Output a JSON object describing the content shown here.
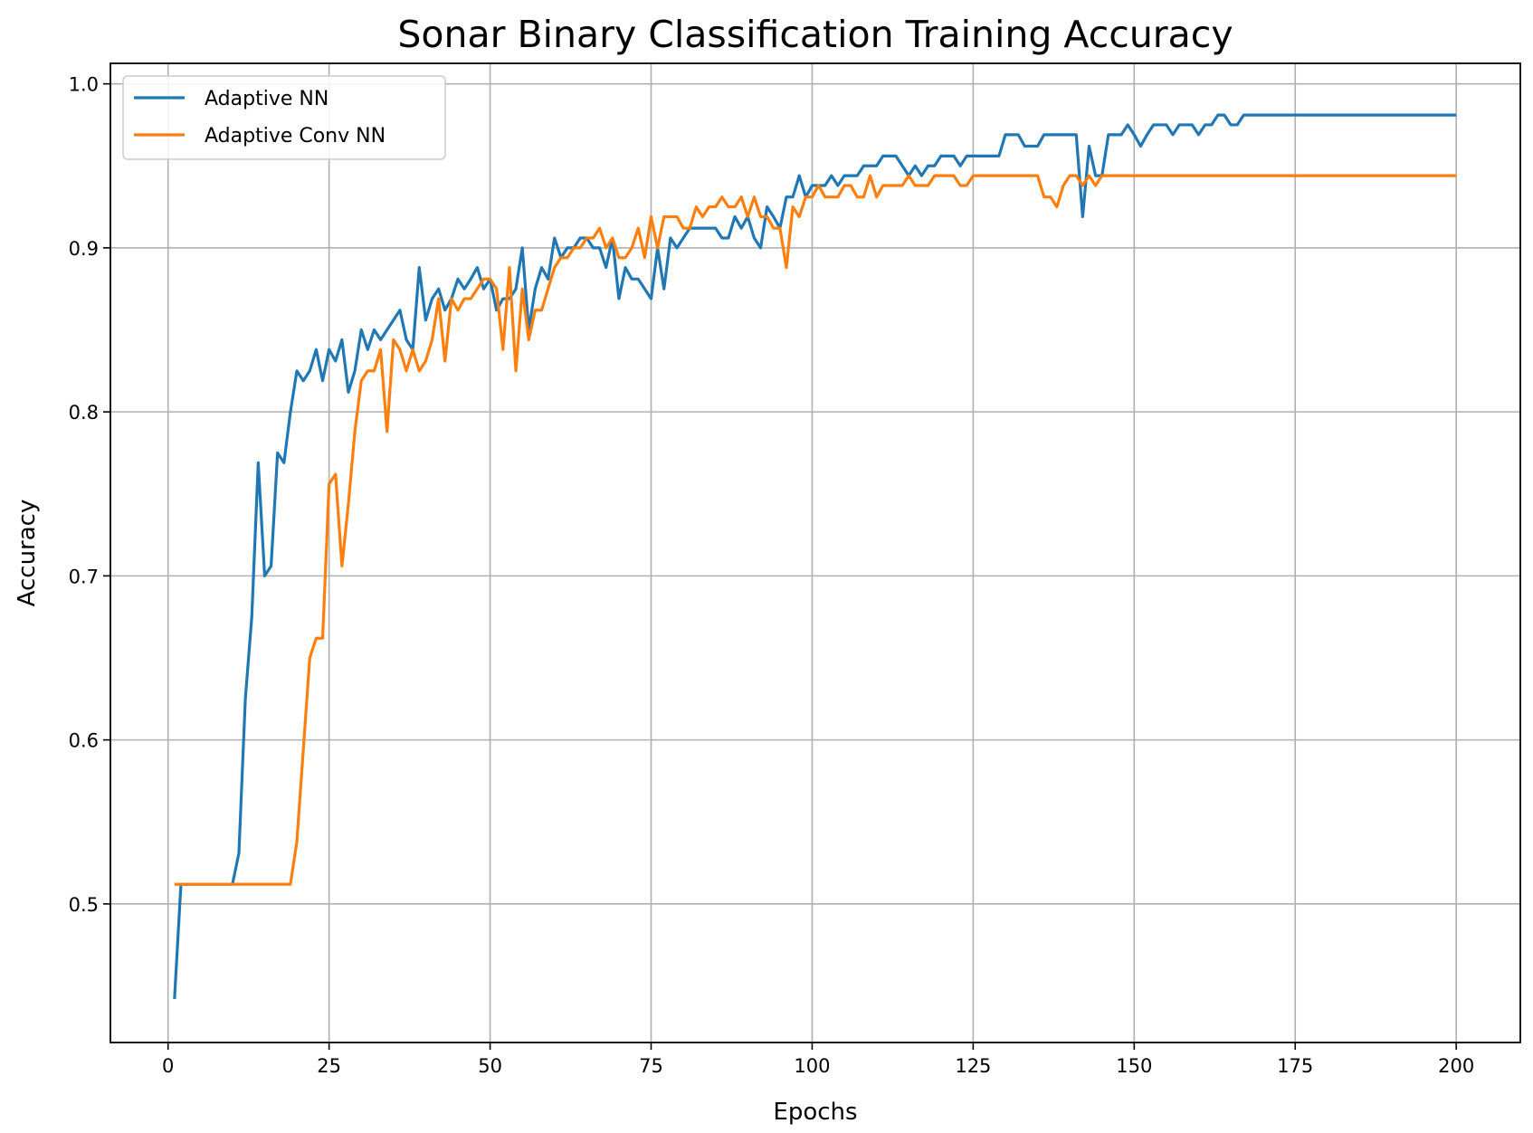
{
  "chart_data": {
    "type": "line",
    "title": "Sonar Binary Classification Training Accuracy",
    "xlabel": "Epochs",
    "ylabel": "Accuracy",
    "xlim": [
      -8.95,
      209.95
    ],
    "ylim": [
      0.4155,
      1.0125
    ],
    "xticks": [
      0,
      25,
      50,
      75,
      100,
      125,
      150,
      175,
      200
    ],
    "yticks": [
      0.5,
      0.6,
      0.7,
      0.8,
      0.9,
      1.0
    ],
    "xtick_labels": [
      "0",
      "25",
      "50",
      "75",
      "100",
      "125",
      "150",
      "175",
      "200"
    ],
    "ytick_labels": [
      "0.5",
      "0.6",
      "0.7",
      "0.8",
      "0.9",
      "1.0"
    ],
    "grid": true,
    "legend_position": "upper-left",
    "series": [
      {
        "name": "Adaptive NN",
        "color": "#1f77b4",
        "x": [
          1,
          2,
          3,
          4,
          5,
          6,
          7,
          8,
          9,
          10,
          11,
          12,
          13,
          14,
          15,
          16,
          17,
          18,
          19,
          20,
          21,
          22,
          23,
          24,
          25,
          26,
          27,
          28,
          29,
          30,
          31,
          32,
          33,
          34,
          35,
          36,
          37,
          38,
          39,
          40,
          41,
          42,
          43,
          44,
          45,
          46,
          47,
          48,
          49,
          50,
          51,
          52,
          53,
          54,
          55,
          56,
          57,
          58,
          59,
          60,
          61,
          62,
          63,
          64,
          65,
          66,
          67,
          68,
          69,
          70,
          71,
          72,
          73,
          74,
          75,
          76,
          77,
          78,
          79,
          80,
          81,
          82,
          83,
          84,
          85,
          86,
          87,
          88,
          89,
          90,
          91,
          92,
          93,
          94,
          95,
          96,
          97,
          98,
          99,
          100,
          101,
          102,
          103,
          104,
          105,
          106,
          107,
          108,
          109,
          110,
          111,
          112,
          113,
          114,
          115,
          116,
          117,
          118,
          119,
          120,
          121,
          122,
          123,
          124,
          125,
          126,
          127,
          128,
          129,
          130,
          131,
          132,
          133,
          134,
          135,
          136,
          137,
          138,
          139,
          140,
          141,
          142,
          143,
          144,
          145,
          146,
          147,
          148,
          149,
          150,
          151,
          152,
          153,
          154,
          155,
          156,
          157,
          158,
          159,
          160,
          161,
          162,
          163,
          164,
          165,
          166,
          167,
          200
        ],
        "y": [
          0.442,
          0.512,
          0.512,
          0.512,
          0.512,
          0.512,
          0.512,
          0.512,
          0.512,
          0.512,
          0.531,
          0.625,
          0.675,
          0.769,
          0.7,
          0.706,
          0.775,
          0.769,
          0.8,
          0.825,
          0.819,
          0.825,
          0.838,
          0.819,
          0.838,
          0.831,
          0.844,
          0.812,
          0.825,
          0.85,
          0.838,
          0.85,
          0.844,
          0.85,
          0.856,
          0.862,
          0.844,
          0.838,
          0.888,
          0.856,
          0.869,
          0.875,
          0.862,
          0.869,
          0.881,
          0.875,
          0.881,
          0.888,
          0.875,
          0.881,
          0.862,
          0.869,
          0.869,
          0.875,
          0.9,
          0.85,
          0.875,
          0.888,
          0.881,
          0.906,
          0.894,
          0.9,
          0.9,
          0.906,
          0.906,
          0.9,
          0.9,
          0.888,
          0.906,
          0.869,
          0.888,
          0.881,
          0.881,
          0.875,
          0.869,
          0.9,
          0.875,
          0.906,
          0.9,
          0.906,
          0.912,
          0.912,
          0.912,
          0.912,
          0.912,
          0.906,
          0.906,
          0.919,
          0.912,
          0.919,
          0.906,
          0.9,
          0.925,
          0.919,
          0.912,
          0.931,
          0.931,
          0.944,
          0.931,
          0.938,
          0.938,
          0.938,
          0.944,
          0.938,
          0.944,
          0.944,
          0.944,
          0.95,
          0.95,
          0.95,
          0.956,
          0.956,
          0.956,
          0.95,
          0.944,
          0.95,
          0.944,
          0.95,
          0.95,
          0.956,
          0.956,
          0.956,
          0.95,
          0.956,
          0.956,
          0.956,
          0.956,
          0.956,
          0.956,
          0.969,
          0.969,
          0.969,
          0.962,
          0.962,
          0.962,
          0.969,
          0.969,
          0.969,
          0.969,
          0.969,
          0.969,
          0.919,
          0.962,
          0.944,
          0.944,
          0.969,
          0.969,
          0.969,
          0.975,
          0.969,
          0.962,
          0.969,
          0.975,
          0.975,
          0.975,
          0.969,
          0.975,
          0.975,
          0.975,
          0.969,
          0.975,
          0.975,
          0.981,
          0.981,
          0.975,
          0.975,
          0.981,
          0.981
        ]
      },
      {
        "name": "Adaptive Conv NN",
        "color": "#ff7f0e",
        "x": [
          1,
          2,
          3,
          4,
          5,
          6,
          7,
          8,
          9,
          10,
          11,
          12,
          13,
          14,
          15,
          16,
          17,
          18,
          19,
          20,
          21,
          22,
          23,
          24,
          25,
          26,
          27,
          28,
          29,
          30,
          31,
          32,
          33,
          34,
          35,
          36,
          37,
          38,
          39,
          40,
          41,
          42,
          43,
          44,
          45,
          46,
          47,
          48,
          49,
          50,
          51,
          52,
          53,
          54,
          55,
          56,
          57,
          58,
          59,
          60,
          61,
          62,
          63,
          64,
          65,
          66,
          67,
          68,
          69,
          70,
          71,
          72,
          73,
          74,
          75,
          76,
          77,
          78,
          79,
          80,
          81,
          82,
          83,
          84,
          85,
          86,
          87,
          88,
          89,
          90,
          91,
          92,
          93,
          94,
          95,
          96,
          97,
          98,
          99,
          100,
          101,
          102,
          103,
          104,
          105,
          106,
          107,
          108,
          109,
          110,
          111,
          112,
          113,
          114,
          115,
          116,
          117,
          118,
          119,
          120,
          121,
          122,
          123,
          124,
          125,
          126,
          127,
          128,
          129,
          130,
          131,
          132,
          133,
          134,
          135,
          136,
          137,
          138,
          139,
          140,
          141,
          142,
          143,
          144,
          145,
          146,
          147,
          148,
          149,
          150,
          200
        ],
        "y": [
          0.512,
          0.512,
          0.512,
          0.512,
          0.512,
          0.512,
          0.512,
          0.512,
          0.512,
          0.512,
          0.512,
          0.512,
          0.512,
          0.512,
          0.512,
          0.512,
          0.512,
          0.512,
          0.512,
          0.538,
          0.594,
          0.65,
          0.662,
          0.662,
          0.756,
          0.762,
          0.706,
          0.744,
          0.788,
          0.819,
          0.825,
          0.825,
          0.838,
          0.788,
          0.844,
          0.838,
          0.825,
          0.838,
          0.825,
          0.831,
          0.844,
          0.869,
          0.831,
          0.869,
          0.862,
          0.869,
          0.869,
          0.875,
          0.881,
          0.881,
          0.875,
          0.838,
          0.888,
          0.825,
          0.875,
          0.844,
          0.862,
          0.862,
          0.875,
          0.888,
          0.894,
          0.894,
          0.9,
          0.9,
          0.906,
          0.906,
          0.912,
          0.9,
          0.906,
          0.894,
          0.894,
          0.9,
          0.912,
          0.894,
          0.919,
          0.9,
          0.919,
          0.919,
          0.919,
          0.912,
          0.912,
          0.925,
          0.919,
          0.925,
          0.925,
          0.931,
          0.925,
          0.925,
          0.931,
          0.919,
          0.931,
          0.919,
          0.919,
          0.912,
          0.912,
          0.888,
          0.925,
          0.919,
          0.931,
          0.931,
          0.938,
          0.931,
          0.931,
          0.931,
          0.938,
          0.938,
          0.931,
          0.931,
          0.944,
          0.931,
          0.938,
          0.938,
          0.938,
          0.938,
          0.944,
          0.938,
          0.938,
          0.938,
          0.944,
          0.944,
          0.944,
          0.944,
          0.938,
          0.938,
          0.944,
          0.944,
          0.944,
          0.944,
          0.944,
          0.944,
          0.944,
          0.944,
          0.944,
          0.944,
          0.944,
          0.931,
          0.931,
          0.925,
          0.938,
          0.944,
          0.944,
          0.938,
          0.944,
          0.938,
          0.944,
          0.944,
          0.944,
          0.944,
          0.944,
          0.944,
          0.944
        ]
      }
    ]
  }
}
